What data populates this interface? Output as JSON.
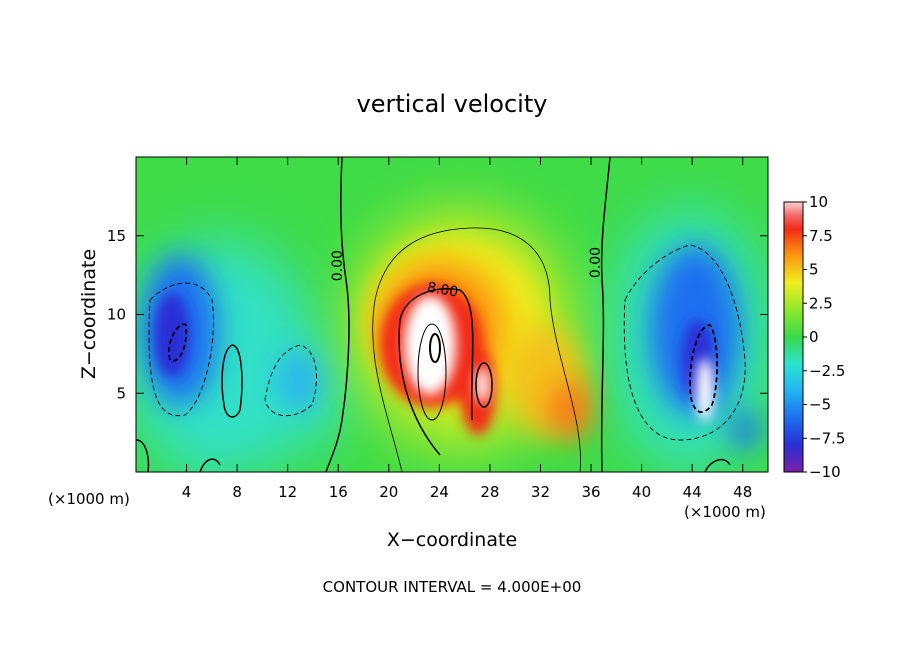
{
  "chart_data": {
    "type": "heatmap",
    "title": "vertical velocity",
    "xlabel": "X−coordinate",
    "ylabel": "Z−coordinate",
    "x_unit_left": "(×1000 m)",
    "x_unit_right": "(×1000 m)",
    "footer": "CONTOUR INTERVAL = 4.000E+00",
    "xlim": [
      0,
      50
    ],
    "ylim": [
      0,
      20
    ],
    "x_ticks": [
      4,
      8,
      12,
      16,
      20,
      24,
      28,
      32,
      36,
      40,
      44,
      48
    ],
    "x_tick_labels": [
      "4",
      "8",
      "12",
      "16",
      "20",
      "24",
      "28",
      "32",
      "36",
      "40",
      "44",
      "48"
    ],
    "y_ticks": [
      5,
      10,
      15
    ],
    "y_tick_labels": [
      "5",
      "10",
      "15"
    ],
    "colorbar": {
      "ticks": [
        10,
        7.5,
        5,
        2.5,
        0,
        -2.5,
        -5,
        -7.5,
        -10
      ],
      "tick_labels": [
        "10",
        "7.5",
        "5",
        "2.5",
        "0",
        "−2.5",
        "−5",
        "−7.5",
        "−10"
      ],
      "range": [
        -10,
        10
      ]
    },
    "contour_labels": [
      {
        "text": "0.00",
        "x": 16.3,
        "y": 13.1
      },
      {
        "text": "8.00",
        "x": 24.2,
        "y": 11.3
      },
      {
        "text": "0.00",
        "x": 36.7,
        "y": 13.3
      }
    ],
    "features": [
      {
        "kind": "updraft",
        "x": 24,
        "z": 8.5,
        "w": 11
      },
      {
        "kind": "updraft",
        "x": 27.5,
        "z": 5.5,
        "w": 10
      },
      {
        "kind": "updraft",
        "x": 45,
        "z": 5.5,
        "w": 11
      },
      {
        "kind": "downdraft",
        "x": 3.5,
        "z": 8,
        "w": -8
      },
      {
        "kind": "downdraft",
        "x": 44,
        "z": 8,
        "w": -9
      }
    ]
  }
}
